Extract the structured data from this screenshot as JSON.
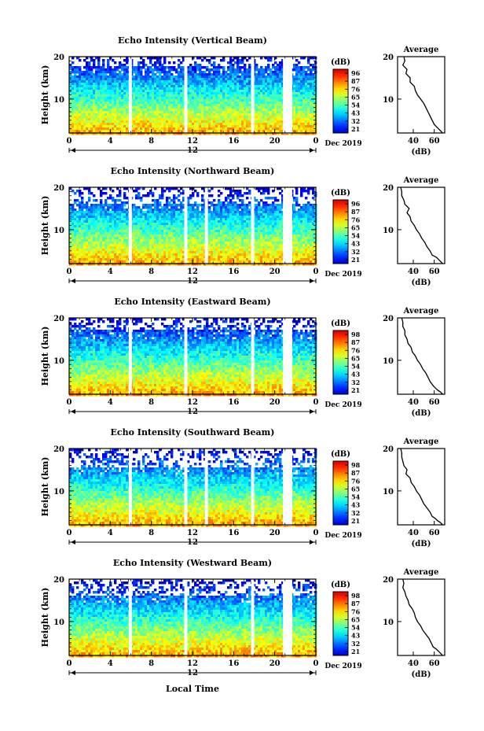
{
  "figure": {
    "xlabel": "Local Time",
    "date_label": "Dec 2019",
    "colorbar_unit": "(dB)",
    "avg_title": "Average",
    "avg_xlabel": "(dB)",
    "panel_ylabel": "Height (km)"
  },
  "chart_data": [
    {
      "type": "heatmap",
      "title": "Echo Intensity (Vertical Beam)",
      "xlabel": "",
      "ylabel": "Height (km)",
      "xlim": [
        0,
        24
      ],
      "ylim": [
        2,
        20
      ],
      "x_ticks": [
        "0",
        "4",
        "8",
        "12",
        "16",
        "20",
        "0"
      ],
      "x_tick_values": [
        0,
        4,
        8,
        12,
        16,
        20,
        24
      ],
      "y_ticks": [
        "10",
        "20"
      ],
      "y_tick_values": [
        10,
        20
      ],
      "day_label": "12",
      "colorbar": {
        "label": "(dB)",
        "ticks": [
          "96",
          "87",
          "76",
          "65",
          "54",
          "43",
          "32",
          "21"
        ],
        "range": [
          21,
          96
        ]
      },
      "data_gaps_hours": [
        [
          5.8,
          6.1
        ],
        [
          11.2,
          11.5
        ],
        [
          17.7,
          18.0
        ],
        [
          20.8,
          21.7
        ]
      ],
      "profile": {
        "title": "Average",
        "xlabel": "(dB)",
        "x_ticks": [
          "40",
          "60"
        ],
        "x_tick_values": [
          40,
          60
        ],
        "xlim": [
          25,
          70
        ],
        "heights_km": [
          2.0,
          2.5,
          3.0,
          3.5,
          4.0,
          5.0,
          6.0,
          7.0,
          8.0,
          9.0,
          10.0,
          11.0,
          12.0,
          13.0,
          14.0,
          15.0,
          16.0,
          17.0,
          18.0,
          19.0,
          20.0
        ],
        "values_db": [
          68,
          66,
          64,
          62,
          60,
          58,
          56,
          54,
          52,
          50,
          47,
          44,
          42,
          41,
          37,
          37,
          33,
          34,
          30,
          32,
          31
        ]
      }
    },
    {
      "type": "heatmap",
      "title": "Echo Intensity (Northward Beam)",
      "xlabel": "",
      "ylabel": "Height (km)",
      "xlim": [
        0,
        24
      ],
      "ylim": [
        2,
        20
      ],
      "x_ticks": [
        "0",
        "4",
        "8",
        "12",
        "16",
        "20",
        "0"
      ],
      "x_tick_values": [
        0,
        4,
        8,
        12,
        16,
        20,
        24
      ],
      "y_ticks": [
        "10",
        "20"
      ],
      "y_tick_values": [
        10,
        20
      ],
      "day_label": "12",
      "colorbar": {
        "label": "(dB)",
        "ticks": [
          "96",
          "87",
          "76",
          "65",
          "54",
          "43",
          "32",
          "21"
        ],
        "range": [
          21,
          96
        ]
      },
      "data_gaps_hours": [
        [
          5.8,
          6.1
        ],
        [
          11.2,
          11.5
        ],
        [
          13.2,
          13.5
        ],
        [
          17.7,
          18.0
        ],
        [
          20.8,
          21.7
        ]
      ],
      "profile": {
        "title": "Average",
        "xlabel": "(dB)",
        "x_ticks": [
          "40",
          "60"
        ],
        "x_tick_values": [
          40,
          60
        ],
        "xlim": [
          25,
          70
        ],
        "heights_km": [
          2.0,
          2.5,
          3.0,
          3.5,
          4.0,
          5.0,
          6.0,
          7.0,
          8.0,
          9.0,
          10.0,
          11.0,
          12.0,
          13.0,
          14.0,
          15.0,
          16.0,
          17.0,
          18.0,
          19.0,
          20.0
        ],
        "values_db": [
          68,
          66,
          64,
          62,
          58,
          56,
          53,
          51,
          48,
          46,
          43,
          41,
          38,
          37,
          34,
          36,
          32,
          31,
          29,
          29,
          28
        ]
      }
    },
    {
      "type": "heatmap",
      "title": "Echo Intensity (Eastward Beam)",
      "xlabel": "",
      "ylabel": "Height (km)",
      "xlim": [
        0,
        24
      ],
      "ylim": [
        2,
        20
      ],
      "x_ticks": [
        "0",
        "4",
        "8",
        "12",
        "16",
        "20",
        "0"
      ],
      "x_tick_values": [
        0,
        4,
        8,
        12,
        16,
        20,
        24
      ],
      "y_ticks": [
        "10",
        "20"
      ],
      "y_tick_values": [
        10,
        20
      ],
      "day_label": "12",
      "colorbar": {
        "label": "(dB)",
        "ticks": [
          "98",
          "87",
          "76",
          "65",
          "54",
          "43",
          "32",
          "21"
        ],
        "range": [
          21,
          98
        ]
      },
      "data_gaps_hours": [
        [
          5.8,
          6.1
        ],
        [
          11.2,
          11.5
        ],
        [
          17.7,
          18.0
        ],
        [
          20.8,
          21.7
        ]
      ],
      "profile": {
        "title": "Average",
        "xlabel": "(dB)",
        "x_ticks": [
          "40",
          "60"
        ],
        "x_tick_values": [
          40,
          60
        ],
        "xlim": [
          25,
          70
        ],
        "heights_km": [
          2.0,
          2.5,
          3.0,
          3.5,
          4.0,
          5.0,
          6.0,
          7.0,
          8.0,
          9.0,
          10.0,
          11.0,
          12.0,
          13.0,
          14.0,
          15.0,
          16.0,
          17.0,
          18.0,
          19.0,
          20.0
        ],
        "values_db": [
          68,
          66,
          63,
          61,
          59,
          56,
          54,
          52,
          49,
          47,
          44,
          42,
          39,
          38,
          35,
          34,
          32,
          32,
          30,
          30,
          29
        ]
      }
    },
    {
      "type": "heatmap",
      "title": "Echo Intensity (Southward Beam)",
      "xlabel": "",
      "ylabel": "Height (km)",
      "xlim": [
        0,
        24
      ],
      "ylim": [
        2,
        20
      ],
      "x_ticks": [
        "0",
        "4",
        "8",
        "12",
        "16",
        "20",
        "0"
      ],
      "x_tick_values": [
        0,
        4,
        8,
        12,
        16,
        20,
        24
      ],
      "y_ticks": [
        "10",
        "20"
      ],
      "y_tick_values": [
        10,
        20
      ],
      "day_label": "12",
      "colorbar": {
        "label": "(dB)",
        "ticks": [
          "98",
          "87",
          "76",
          "65",
          "54",
          "43",
          "32",
          "21"
        ],
        "range": [
          21,
          98
        ]
      },
      "data_gaps_hours": [
        [
          5.8,
          6.1
        ],
        [
          11.2,
          11.5
        ],
        [
          13.2,
          13.5
        ],
        [
          17.7,
          18.0
        ],
        [
          20.8,
          21.7
        ]
      ],
      "profile": {
        "title": "Average",
        "xlabel": "(dB)",
        "x_ticks": [
          "40",
          "60"
        ],
        "x_tick_values": [
          40,
          60
        ],
        "xlim": [
          25,
          70
        ],
        "heights_km": [
          2.0,
          2.5,
          3.0,
          3.5,
          4.0,
          5.0,
          6.0,
          7.0,
          8.0,
          9.0,
          10.0,
          11.0,
          12.0,
          13.0,
          14.0,
          15.0,
          16.0,
          17.0,
          18.0,
          19.0,
          20.0
        ],
        "values_db": [
          68,
          66,
          63,
          61,
          58,
          56,
          53,
          50,
          48,
          46,
          43,
          41,
          38,
          37,
          33,
          34,
          31,
          30,
          29,
          29,
          28
        ]
      }
    },
    {
      "type": "heatmap",
      "title": "Echo Intensity (Westward Beam)",
      "xlabel": "Local Time",
      "ylabel": "Height (km)",
      "xlim": [
        0,
        24
      ],
      "ylim": [
        2,
        20
      ],
      "x_ticks": [
        "0",
        "4",
        "8",
        "12",
        "16",
        "20",
        "0"
      ],
      "x_tick_values": [
        0,
        4,
        8,
        12,
        16,
        20,
        24
      ],
      "y_ticks": [
        "10",
        "20"
      ],
      "y_tick_values": [
        10,
        20
      ],
      "day_label": "12",
      "colorbar": {
        "label": "(dB)",
        "ticks": [
          "98",
          "87",
          "76",
          "65",
          "54",
          "43",
          "32",
          "21"
        ],
        "range": [
          21,
          98
        ]
      },
      "data_gaps_hours": [
        [
          5.8,
          6.1
        ],
        [
          11.2,
          11.5
        ],
        [
          17.7,
          18.0
        ],
        [
          20.8,
          21.7
        ]
      ],
      "profile": {
        "title": "Average",
        "xlabel": "(dB)",
        "x_ticks": [
          "40",
          "60"
        ],
        "x_tick_values": [
          40,
          60
        ],
        "xlim": [
          25,
          70
        ],
        "heights_km": [
          2.0,
          2.5,
          3.0,
          3.5,
          4.0,
          5.0,
          6.0,
          7.0,
          8.0,
          9.0,
          10.0,
          11.0,
          12.0,
          13.0,
          14.0,
          15.0,
          16.0,
          17.0,
          18.0,
          19.0,
          20.0
        ],
        "values_db": [
          68,
          66,
          64,
          62,
          59,
          57,
          55,
          52,
          49,
          47,
          44,
          42,
          41,
          39,
          36,
          35,
          33,
          32,
          30,
          31,
          30
        ]
      }
    }
  ]
}
